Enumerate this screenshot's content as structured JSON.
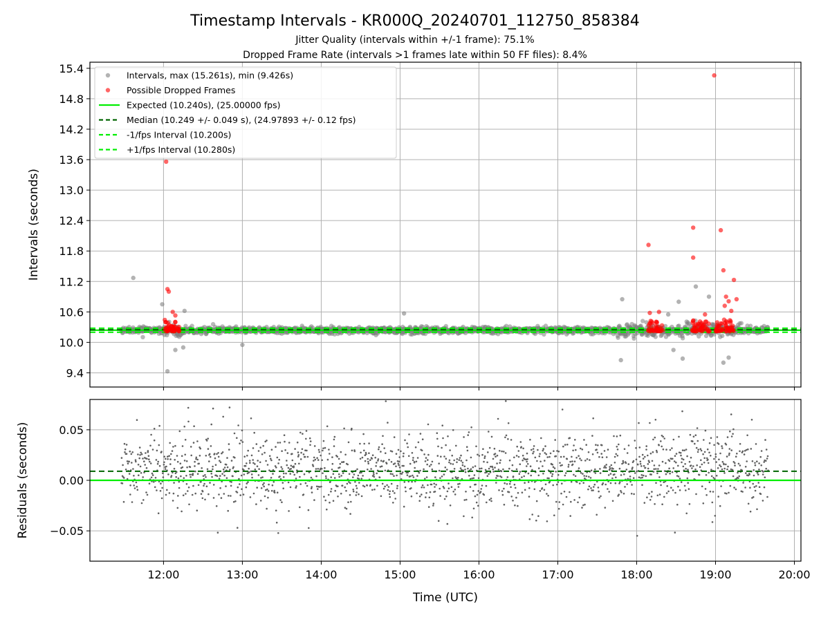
{
  "title": "Timestamp Intervals - KR000Q_20240701_112750_858384",
  "subtitle1": "Jitter Quality (intervals within +/-1 frame): 75.1%",
  "subtitle2": "Dropped Frame Rate (intervals >1 frames late within 50 FF files): 8.4%",
  "colors": {
    "interval_points": "#808080",
    "dropped_points": "#ff0000",
    "expected_line": "#00ee00",
    "median_line": "#006400",
    "fps_band_lines": "#00ee00",
    "residual_points": "#606060"
  },
  "chart_data": [
    {
      "type": "scatter",
      "ylabel": "Intervals (seconds)",
      "y_ticks": [
        "9.4",
        "10.0",
        "10.6",
        "11.2",
        "11.8",
        "12.4",
        "13.0",
        "13.6",
        "14.2",
        "14.8",
        "15.4"
      ],
      "x_ticks": [
        "12:00",
        "13:00",
        "14:00",
        "15:00",
        "16:00",
        "17:00",
        "18:00",
        "19:00",
        "20:00"
      ],
      "x_range": [
        "11:04",
        "20:05"
      ],
      "ylim": [
        9.12,
        15.52
      ],
      "grid": true,
      "legend_position": "top-left",
      "legend": [
        "Intervals, max (15.261s), min (9.426s)",
        "Possible Dropped Frames",
        "Expected (10.240s), (25.00000 fps)",
        "Median (10.249 +/- 0.049 s), (24.97893 +/- 0.12 fps)",
        "-1/fps Interval (10.200s)",
        "+1/fps Interval (10.280s)"
      ],
      "reference_lines": {
        "expected": 10.24,
        "median": 10.249,
        "minus_one_fps": 10.2,
        "plus_one_fps": 10.28
      },
      "series": [
        {
          "name": "Intervals",
          "x_span": [
            "11:28",
            "19:40"
          ],
          "typical_y": 10.24,
          "typical_spread": 0.12,
          "sample_count": 1700,
          "outliers": [
            {
              "x": "11:37",
              "y": 11.27
            },
            {
              "x": "11:59",
              "y": 10.75
            },
            {
              "x": "12:03",
              "y": 9.43
            },
            {
              "x": "12:09",
              "y": 9.85
            },
            {
              "x": "12:15",
              "y": 9.9
            },
            {
              "x": "12:16",
              "y": 10.62
            },
            {
              "x": "13:00",
              "y": 9.95
            },
            {
              "x": "15:03",
              "y": 10.57
            },
            {
              "x": "17:48",
              "y": 9.65
            },
            {
              "x": "17:49",
              "y": 10.85
            },
            {
              "x": "18:24",
              "y": 10.55
            },
            {
              "x": "18:28",
              "y": 9.85
            },
            {
              "x": "18:32",
              "y": 10.8
            },
            {
              "x": "18:35",
              "y": 9.68
            },
            {
              "x": "18:45",
              "y": 11.1
            },
            {
              "x": "18:55",
              "y": 10.9
            },
            {
              "x": "19:06",
              "y": 9.6
            },
            {
              "x": "19:10",
              "y": 9.7
            }
          ]
        },
        {
          "name": "Possible Dropped Frames",
          "clusters": [
            {
              "x_from": "12:00",
              "x_to": "12:12",
              "count": 45,
              "y_low": 10.22,
              "y_high": 10.45
            },
            {
              "x_from": "18:08",
              "x_to": "18:20",
              "count": 40,
              "y_low": 10.22,
              "y_high": 10.45
            },
            {
              "x_from": "18:42",
              "x_to": "18:56",
              "count": 45,
              "y_low": 10.22,
              "y_high": 10.45
            },
            {
              "x_from": "19:00",
              "x_to": "19:14",
              "count": 50,
              "y_low": 10.22,
              "y_high": 10.45
            }
          ],
          "outliers": [
            {
              "x": "12:02",
              "y": 13.56
            },
            {
              "x": "12:03",
              "y": 11.05
            },
            {
              "x": "12:04",
              "y": 11.0
            },
            {
              "x": "12:07",
              "y": 10.6
            },
            {
              "x": "12:09",
              "y": 10.53
            },
            {
              "x": "18:09",
              "y": 11.92
            },
            {
              "x": "18:10",
              "y": 10.58
            },
            {
              "x": "18:17",
              "y": 10.6
            },
            {
              "x": "18:43",
              "y": 12.26
            },
            {
              "x": "18:43",
              "y": 11.67
            },
            {
              "x": "18:52",
              "y": 10.55
            },
            {
              "x": "18:59",
              "y": 15.26
            },
            {
              "x": "19:04",
              "y": 12.21
            },
            {
              "x": "19:06",
              "y": 11.42
            },
            {
              "x": "19:07",
              "y": 10.72
            },
            {
              "x": "19:08",
              "y": 10.9
            },
            {
              "x": "19:10",
              "y": 10.81
            },
            {
              "x": "19:12",
              "y": 10.62
            },
            {
              "x": "19:14",
              "y": 11.23
            },
            {
              "x": "19:16",
              "y": 10.85
            }
          ]
        }
      ]
    },
    {
      "type": "scatter",
      "xlabel": "Time (UTC)",
      "ylabel": "Residuals (seconds)",
      "y_ticks": [
        "−0.05",
        "0.00",
        "0.05"
      ],
      "x_ticks": [
        "12:00",
        "13:00",
        "14:00",
        "15:00",
        "16:00",
        "17:00",
        "18:00",
        "19:00",
        "20:00"
      ],
      "x_range": [
        "11:04",
        "20:05"
      ],
      "ylim": [
        -0.08,
        0.08
      ],
      "grid": true,
      "reference_lines": {
        "zero": 0.0,
        "median_offset": 0.009
      },
      "series": [
        {
          "name": "Residuals",
          "x_span": [
            "11:28",
            "19:40"
          ],
          "sample_count": 1700,
          "typical_range": [
            -0.04,
            0.06
          ]
        }
      ]
    }
  ]
}
